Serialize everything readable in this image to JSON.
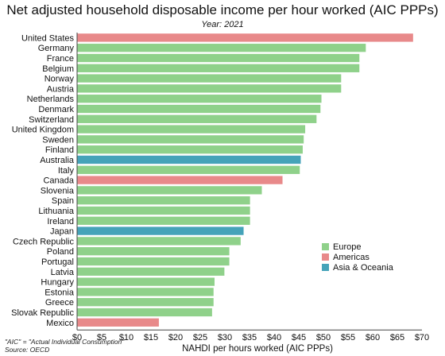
{
  "chart_data": {
    "type": "bar",
    "orientation": "horizontal",
    "title": "Net adjusted household disposable income per hour worked (AIC PPPs)",
    "subtitle": "Year: 2021",
    "xlabel": "NAHDI per hours worked (AIC PPPs)",
    "ylabel": "",
    "xlim": [
      0,
      70
    ],
    "x_tick_labels": [
      "$0",
      "$5",
      "$10",
      "$15",
      "$20",
      "$25",
      "$30",
      "$35",
      "$40",
      "$45",
      "$50",
      "$55",
      "$60",
      "$65",
      "$70"
    ],
    "grid": false,
    "legend_position": "right",
    "groups": [
      {
        "name": "Europe",
        "color": "#8fd18a"
      },
      {
        "name": "Americas",
        "color": "#e8898a"
      },
      {
        "name": "Asia & Oceania",
        "color": "#45a3b9"
      }
    ],
    "categories": [
      "United States",
      "Germany",
      "France",
      "Belgium",
      "Norway",
      "Austria",
      "Netherlands",
      "Denmark",
      "Switzerland",
      "United Kingdom",
      "Sweden",
      "Finland",
      "Australia",
      "Italy",
      "Canada",
      "Slovenia",
      "Spain",
      "Lithuania",
      "Ireland",
      "Japan",
      "Czech Republic",
      "Poland",
      "Portugal",
      "Latvia",
      "Hungary",
      "Estonia",
      "Greece",
      "Slovak Republic",
      "Mexico"
    ],
    "values": [
      68.2,
      58.6,
      57.3,
      57.3,
      53.6,
      53.6,
      49.6,
      49.4,
      48.6,
      46.3,
      46.0,
      45.8,
      45.4,
      45.2,
      41.7,
      37.5,
      35.1,
      35.1,
      35.1,
      33.8,
      33.2,
      30.9,
      30.9,
      29.9,
      27.9,
      27.7,
      27.7,
      27.4,
      16.6
    ],
    "value_groups": [
      "Americas",
      "Europe",
      "Europe",
      "Europe",
      "Europe",
      "Europe",
      "Europe",
      "Europe",
      "Europe",
      "Europe",
      "Europe",
      "Europe",
      "Asia & Oceania",
      "Europe",
      "Americas",
      "Europe",
      "Europe",
      "Europe",
      "Europe",
      "Asia & Oceania",
      "Europe",
      "Europe",
      "Europe",
      "Europe",
      "Europe",
      "Europe",
      "Europe",
      "Europe",
      "Americas"
    ]
  },
  "notes": {
    "aic": "\"AIC\" = \"Actual Individual Consumption\"",
    "source": "Source: OECD"
  }
}
